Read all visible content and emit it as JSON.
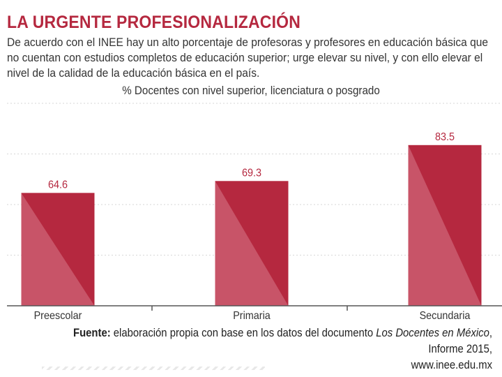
{
  "header": {
    "title": "LA URGENTE PROFESIONALIZACIÓN",
    "description": "De acuerdo con el INEE hay un alto porcentaje de profesoras y profesores en educación básica que no cuentan con estudios completos de educación superior; urge elevar su nivel, y con ello elevar el nivel de la calidad de la educación básica en el país."
  },
  "colors": {
    "accent": "#b5283f",
    "bar_light": "#c85468",
    "gridline": "#dddddd",
    "axis": "#555555"
  },
  "chart_data": {
    "type": "bar",
    "title": "% Docentes con nivel superior, licenciatura o posgrado",
    "categories": [
      "Preescolar",
      "Primaria",
      "Secundaria"
    ],
    "values": [
      64.6,
      69.3,
      83.5
    ],
    "value_labels": [
      "64.6",
      "69.3",
      "83.5"
    ],
    "xlabel": "",
    "ylabel": "",
    "ylim": [
      20,
      100
    ],
    "grid": true,
    "legend": "none"
  },
  "source": {
    "label": "Fuente:",
    "text_before": " elaboración propia con base en los datos del documento ",
    "doc_title": "Los Docentes en México",
    "text_after": ", Informe 2015,",
    "url": "www.inee.edu.mx"
  }
}
